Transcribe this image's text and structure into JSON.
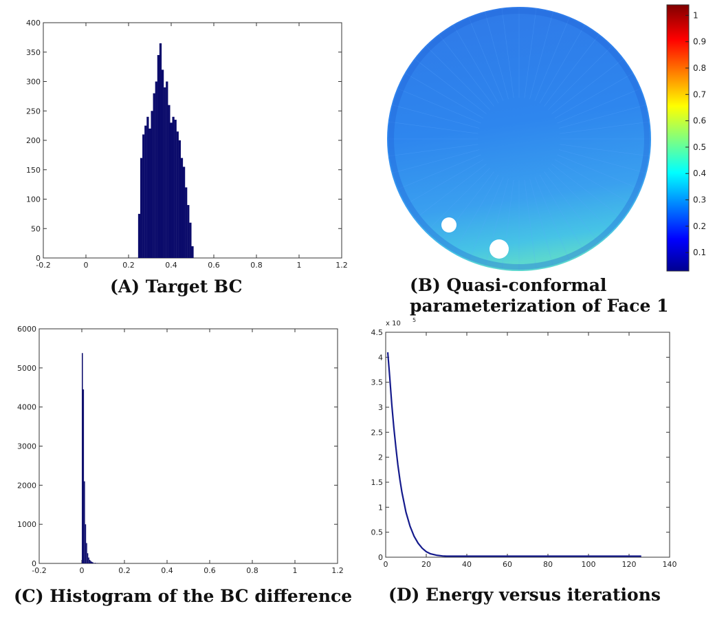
{
  "chart_data": [
    {
      "id": "A",
      "type": "bar",
      "caption": "(A) Target BC",
      "xlim": [
        -0.2,
        1.2
      ],
      "ylim": [
        0,
        400
      ],
      "xticks": [
        "-0.2",
        "0",
        "0.2",
        "0.4",
        "0.6",
        "0.8",
        "1",
        "1.2"
      ],
      "yticks": [
        "0",
        "50",
        "100",
        "150",
        "200",
        "250",
        "300",
        "350",
        "400"
      ],
      "x": [
        0.25,
        0.26,
        0.27,
        0.28,
        0.29,
        0.3,
        0.31,
        0.32,
        0.33,
        0.34,
        0.35,
        0.36,
        0.37,
        0.38,
        0.39,
        0.4,
        0.41,
        0.42,
        0.43,
        0.44,
        0.45,
        0.46,
        0.47,
        0.48,
        0.49,
        0.5
      ],
      "values": [
        75,
        170,
        210,
        225,
        240,
        220,
        250,
        280,
        300,
        345,
        365,
        320,
        290,
        300,
        260,
        230,
        240,
        235,
        215,
        200,
        170,
        155,
        120,
        90,
        60,
        20
      ]
    },
    {
      "id": "B",
      "type": "heatmap",
      "caption_lines": [
        "(B) Quasi-conformal",
        "parameterization of Face 1"
      ],
      "colorbar_ticks": [
        "0.1",
        "0.2",
        "0.3",
        "0.4",
        "0.5",
        "0.6",
        "0.7",
        "0.8",
        "0.9",
        "1"
      ],
      "colorbar_range": [
        0.03,
        1.04
      ]
    },
    {
      "id": "C",
      "type": "bar",
      "caption": "(C) Histogram of the BC difference",
      "xlim": [
        -0.2,
        1.2
      ],
      "ylim": [
        0,
        6000
      ],
      "xticks": [
        "-0.2",
        "0",
        "0.2",
        "0.4",
        "0.6",
        "0.8",
        "1",
        "1.2"
      ],
      "yticks": [
        "0",
        "1000",
        "2000",
        "3000",
        "4000",
        "5000",
        "6000"
      ],
      "x": [
        0.0,
        0.005,
        0.01,
        0.015,
        0.02,
        0.025,
        0.03,
        0.035,
        0.04,
        0.045,
        0.05,
        0.06,
        0.07
      ],
      "values": [
        5380,
        4450,
        2100,
        1000,
        520,
        260,
        150,
        90,
        60,
        40,
        25,
        15,
        8
      ]
    },
    {
      "id": "D",
      "type": "line",
      "caption": "(D) Energy versus iterations",
      "xlim": [
        0,
        140
      ],
      "ylim": [
        0,
        4.5
      ],
      "exponent_label": "x 10",
      "exponent_power": "5",
      "xticks": [
        "0",
        "20",
        "40",
        "60",
        "80",
        "100",
        "120",
        "140"
      ],
      "yticks": [
        "0",
        "0.5",
        "1",
        "1.5",
        "2",
        "2.5",
        "3",
        "3.5",
        "4",
        "4.5"
      ],
      "x": [
        1,
        2,
        3,
        4,
        5,
        6,
        7,
        8,
        10,
        12,
        14,
        16,
        18,
        20,
        22,
        25,
        28,
        30,
        35,
        40,
        60,
        80,
        100,
        126
      ],
      "values": [
        4.1,
        3.6,
        3.05,
        2.6,
        2.2,
        1.85,
        1.55,
        1.3,
        0.9,
        0.62,
        0.42,
        0.28,
        0.18,
        0.11,
        0.07,
        0.04,
        0.025,
        0.02,
        0.02,
        0.02,
        0.02,
        0.02,
        0.02,
        0.02
      ]
    }
  ]
}
